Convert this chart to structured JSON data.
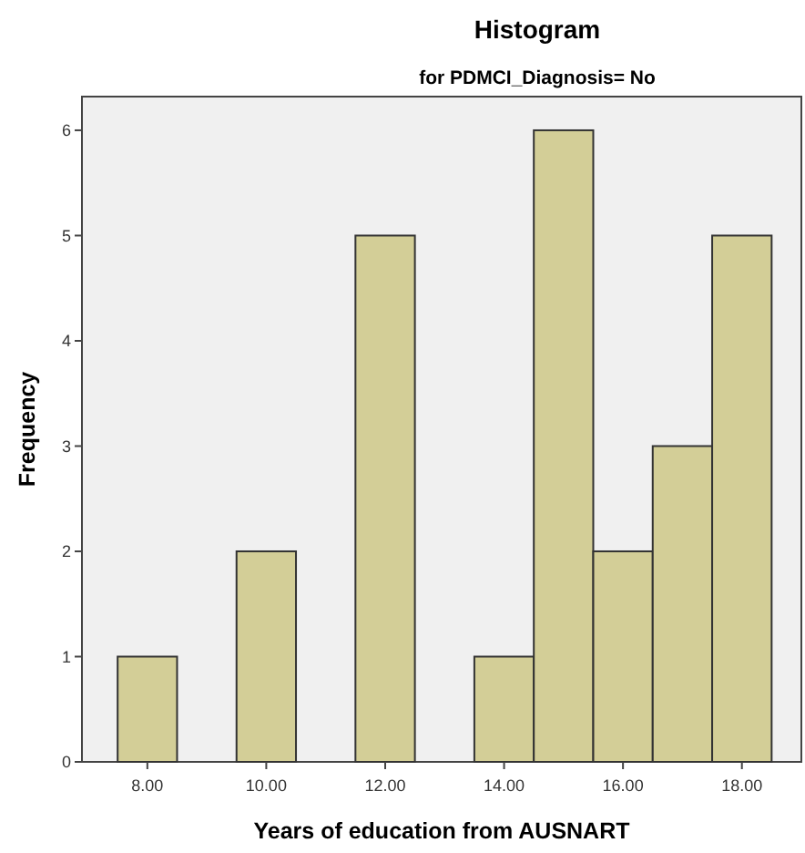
{
  "chart_data": {
    "type": "histogram",
    "title": "Histogram",
    "subtitle": "for PDMCI_Diagnosis= No",
    "xlabel": "Years of education from AUSNART",
    "ylabel": "Frequency",
    "bins": [
      7.5,
      8.5,
      9.5,
      10.5,
      11.5,
      12.5,
      13.5,
      14.5,
      15.5,
      16.5,
      17.5,
      18.5
    ],
    "values": [
      1,
      0,
      2,
      0,
      5,
      0,
      1,
      6,
      2,
      3,
      5
    ],
    "color": "#d3ce97",
    "xlim": [
      6.9,
      19.0
    ],
    "ylim": [
      0,
      6.32
    ],
    "xticks": [
      {
        "value": 8,
        "label": "8.00"
      },
      {
        "value": 10,
        "label": "10.00"
      },
      {
        "value": 12,
        "label": "12.00"
      },
      {
        "value": 14,
        "label": "14.00"
      },
      {
        "value": 16,
        "label": "16.00"
      },
      {
        "value": 18,
        "label": "18.00"
      }
    ],
    "yticks": [
      0,
      1,
      2,
      3,
      4,
      5,
      6
    ]
  }
}
